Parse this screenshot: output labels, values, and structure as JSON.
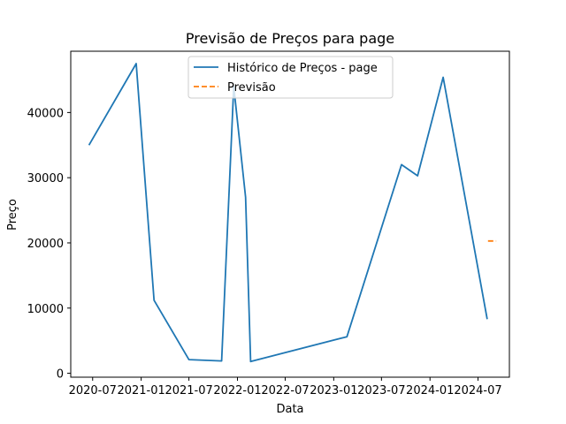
{
  "chart_data": {
    "type": "line",
    "title": "Previsão de Preços para page",
    "xlabel": "Data",
    "ylabel": "Preço",
    "xlim": [
      "2020-04-09",
      "2024-10-28"
    ],
    "ylim": [
      -600,
      49400
    ],
    "x_ticks": [
      "2020-07-01",
      "2021-01-01",
      "2021-07-01",
      "2022-01-01",
      "2022-07-01",
      "2023-01-01",
      "2023-07-01",
      "2024-01-01",
      "2024-07-01"
    ],
    "x_tick_labels": [
      "2020-07",
      "2021-01",
      "2021-07",
      "2022-01",
      "2022-07",
      "2023-01",
      "2023-07",
      "2024-01",
      "2024-07"
    ],
    "y_ticks": [
      0,
      10000,
      20000,
      30000,
      40000
    ],
    "y_tick_labels": [
      "0",
      "10000",
      "20000",
      "30000",
      "40000"
    ],
    "grid": false,
    "legend_position": "upper center",
    "series": [
      {
        "name": "Histórico de Preços - page",
        "color": "#1f77b4",
        "style": "solid",
        "x": [
          "2020-06-17",
          "2020-12-13",
          "2021-02-19",
          "2021-07-01",
          "2021-11-02",
          "2021-12-18",
          "2022-02-01",
          "2022-02-20",
          "2023-02-20",
          "2023-09-15",
          "2023-11-15",
          "2024-02-20",
          "2024-08-05"
        ],
        "y": [
          35000,
          47500,
          11200,
          2100,
          1900,
          44000,
          27000,
          1800,
          5600,
          32000,
          30300,
          45400,
          8300
        ]
      },
      {
        "name": "Previsão",
        "color": "#ff7f0e",
        "style": "dashed",
        "x": [
          "2024-08-08",
          "2024-09-08"
        ],
        "y": [
          20300,
          20300
        ]
      }
    ]
  }
}
